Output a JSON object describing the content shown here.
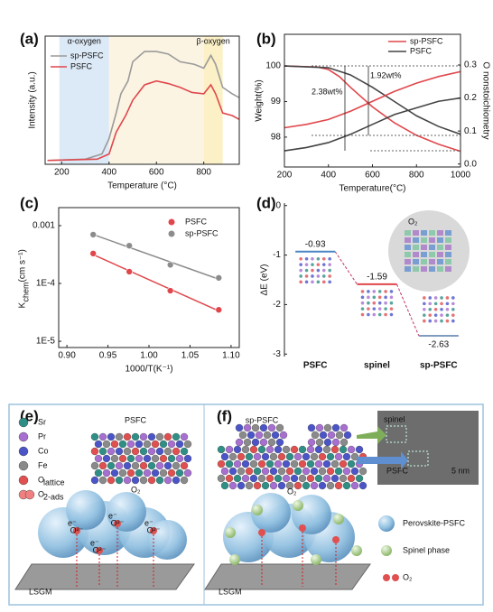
{
  "panel_labels": [
    "(a)",
    "(b)",
    "(c)",
    "(d)",
    "(e)",
    "(f)"
  ],
  "chart_data": [
    {
      "type": "line",
      "xlabel": "Temperature (°C)",
      "ylabel": "Intensity (a.u.)",
      "xlim": [
        130,
        950
      ],
      "xticks": [
        200,
        400,
        600,
        800
      ],
      "ylim": [
        0,
        100
      ],
      "legend": "upper left",
      "regions": [
        {
          "label": "α-oxygen",
          "x": [
            190,
            400
          ],
          "color": "#dce9f6"
        },
        {
          "x": [
            400,
            800
          ],
          "color": "#fbf4e3"
        },
        {
          "label": "β-oxygen",
          "x": [
            800,
            880
          ],
          "color": "#fbf0c6"
        }
      ],
      "series": [
        {
          "name": "sp-PSFC",
          "color": "#9a9a9a",
          "x": [
            140,
            300,
            370,
            400,
            430,
            450,
            480,
            500,
            550,
            600,
            650,
            700,
            760,
            800,
            830,
            850,
            880,
            920,
            950
          ],
          "values": [
            3,
            4,
            8,
            20,
            40,
            55,
            65,
            80,
            88,
            88,
            86,
            80,
            78,
            75,
            85,
            78,
            60,
            55,
            52
          ]
        },
        {
          "name": "PSFC",
          "color": "#e0474c",
          "x": [
            140,
            350,
            400,
            430,
            470,
            500,
            550,
            600,
            650,
            700,
            750,
            800,
            830,
            850,
            880,
            920,
            950
          ],
          "values": [
            3,
            4,
            8,
            25,
            38,
            50,
            62,
            65,
            63,
            60,
            56,
            55,
            62,
            55,
            40,
            38,
            35
          ]
        }
      ]
    },
    {
      "type": "dual_line",
      "xlabel": "Temperature(°C)",
      "ylabel": "Weight(%)",
      "y2label": "O nonstoichiometry",
      "xlim": [
        200,
        1000
      ],
      "xticks": [
        200,
        400,
        600,
        800,
        1000
      ],
      "ylim": [
        97.16,
        100.89
      ],
      "yticks": [
        98,
        99,
        100
      ],
      "y2lim": [
        -0.009,
        0.393
      ],
      "y2ticks": [
        {
          "value": 0,
          "label": "0.0"
        },
        0.1,
        0.2,
        0.3
      ],
      "legend": "upper right",
      "annotations": [
        "1.92wt%",
        "2.38wt%"
      ],
      "series": [
        {
          "name": "sp-PSFC",
          "color": "#e0474c",
          "x": [
            200,
            350,
            400,
            450,
            500,
            600,
            700,
            800,
            900,
            1000
          ],
          "values": [
            100,
            99.97,
            99.9,
            99.7,
            99.4,
            98.85,
            98.4,
            98.05,
            97.8,
            97.6
          ]
        },
        {
          "name": "PSFC",
          "color": "#444444",
          "x": [
            200,
            400,
            500,
            600,
            700,
            800,
            900,
            1000
          ],
          "values": [
            100,
            99.95,
            99.75,
            99.4,
            99.0,
            98.6,
            98.3,
            98.08
          ]
        },
        {
          "color": "#e0474c",
          "axis": "y2",
          "x": [
            200,
            300,
            400,
            500,
            600,
            700,
            800,
            900,
            1000
          ],
          "values": [
            0.11,
            0.12,
            0.135,
            0.16,
            0.19,
            0.22,
            0.245,
            0.265,
            0.28
          ]
        },
        {
          "color": "#444444",
          "axis": "y2",
          "x": [
            200,
            300,
            400,
            500,
            600,
            700,
            800,
            900,
            1000
          ],
          "values": [
            0.04,
            0.05,
            0.065,
            0.09,
            0.12,
            0.15,
            0.17,
            0.19,
            0.2
          ]
        }
      ]
    },
    {
      "type": "scatter_fit",
      "xlabel": "1000/T(K⁻¹)",
      "ylabel": "K",
      "ylabel_sub": "chem",
      "ylabel_unit": "(cm s⁻¹)",
      "xlim": [
        0.89,
        1.11
      ],
      "xticks": [
        {
          "value": 0.9,
          "label": "0.90"
        },
        0.95,
        {
          "value": 1.0,
          "label": "1.00"
        },
        1.05,
        {
          "value": 1.1,
          "label": "1.10"
        }
      ],
      "log_y": true,
      "ylim": [
        7.8e-06,
        0.00205
      ],
      "yticks": [
        {
          "value": 1e-05,
          "label": "1E-5"
        },
        {
          "value": 0.0001,
          "label": "1E-4"
        },
        0.001
      ],
      "legend": "upper right",
      "series": [
        {
          "name": "PSFC",
          "color": "#e0474c",
          "x": [
            0.932,
            0.976,
            1.026,
            1.085
          ],
          "values": [
            0.00033,
            0.00016,
            7.5e-05,
            3.5e-05
          ]
        },
        {
          "name": "sp-PSFC",
          "color": "#8c8c8c",
          "x": [
            0.932,
            0.976,
            1.026,
            1.085
          ],
          "values": [
            0.0007,
            0.00045,
            0.00021,
            0.000125
          ]
        }
      ]
    },
    {
      "type": "energy",
      "ylabel": "ΔE (eV)",
      "ylim": [
        -3.05,
        0.05
      ],
      "yticks": [
        0,
        -1,
        -2,
        -3
      ],
      "categories": [
        "PSFC",
        "spinel",
        "sp-PSFC"
      ],
      "values": [
        -0.93,
        -1.59,
        -2.63
      ],
      "colors": [
        "#4a86c5",
        "#e0474c",
        "#7f9bbd"
      ],
      "inset_label": "O₂"
    }
  ],
  "schematic_e": {
    "title": "PSFC",
    "legend": [
      {
        "label": "Sr",
        "color": "#2f8f86"
      },
      {
        "label": "Pr",
        "color": "#a66fd0"
      },
      {
        "label": "Co",
        "color": "#4b55c8"
      },
      {
        "label": "Fe",
        "color": "#8a8a8a"
      },
      {
        "label": "O",
        "sub": "lattice",
        "color": "#e05050"
      },
      {
        "label": "O",
        "sub": "2-ads",
        "color": "#f08080"
      }
    ],
    "o2": "O₂",
    "substrate": "LSGM",
    "electron": "e⁻",
    "ion": "O²⁻"
  },
  "schematic_f": {
    "title": "sp-PSFC",
    "tem_labels": [
      "spinel",
      "PSFC"
    ],
    "scale": "5 nm",
    "o2": "O₂",
    "legend": [
      "Perovskite-PSFC",
      "Spinel phase",
      "O₂"
    ],
    "substrate": "LSGM"
  }
}
